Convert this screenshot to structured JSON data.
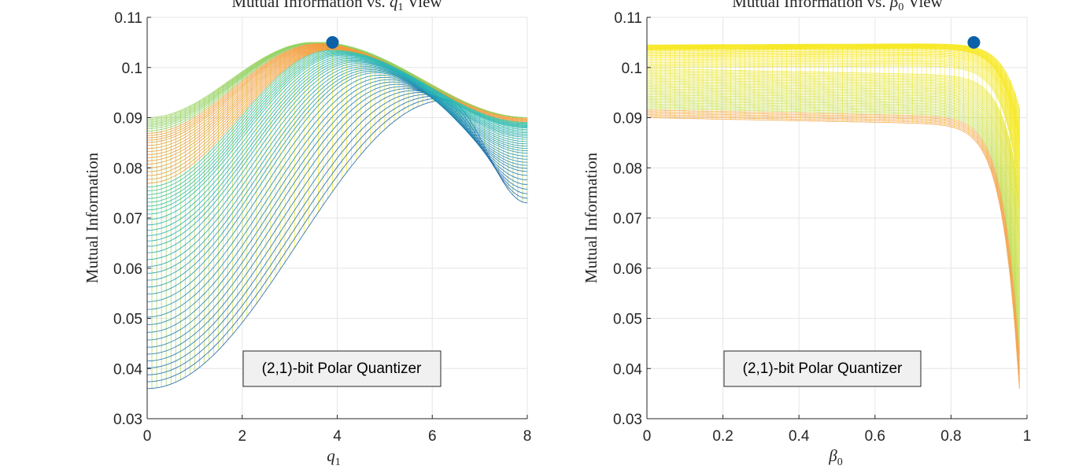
{
  "chart_data": [
    {
      "type": "line",
      "title_prefix": "Mutual Information vs. ",
      "title_symbol": "q",
      "title_symbol_sub": "1",
      "title_suffix": " View",
      "xlabel_symbol": "q",
      "xlabel_sub": "1",
      "ylabel": "Mutual Information",
      "xlim": [
        0,
        8
      ],
      "ylim": [
        0.03,
        0.11
      ],
      "xticks": [
        "0",
        "2",
        "4",
        "6",
        "8"
      ],
      "yticks": [
        "0.03",
        "0.04",
        "0.05",
        "0.06",
        "0.07",
        "0.08",
        "0.09",
        "0.1",
        "0.11"
      ],
      "grid": true,
      "annotation": "(2,1)-bit Polar Quantizer",
      "max_point": {
        "x": 3.9,
        "y": 0.105
      },
      "surface_rows": {
        "y_at_q0": [
          0.036,
          0.045,
          0.055,
          0.064,
          0.071,
          0.076,
          0.081,
          0.085,
          0.088,
          0.09
        ],
        "y_at_q8": [
          0.073,
          0.079,
          0.083,
          0.086,
          0.088,
          0.089,
          0.09,
          0.09,
          0.09,
          0.09
        ],
        "peak_q": [
          6.3,
          5.4,
          4.8,
          4.4,
          4.1,
          3.9,
          3.8,
          3.7,
          3.6,
          3.5
        ],
        "peak_y": [
          0.0935,
          0.096,
          0.099,
          0.101,
          0.1025,
          0.1035,
          0.104,
          0.1045,
          0.105,
          0.105
        ]
      }
    },
    {
      "type": "line",
      "title_prefix": "Mutual Information vs. ",
      "title_symbol": "β",
      "title_symbol_sub": "0",
      "title_suffix": " View",
      "xlabel_symbol": "β",
      "xlabel_sub": "0",
      "ylabel": "Mutual Information",
      "xlim": [
        0,
        1
      ],
      "ylim": [
        0.03,
        0.11
      ],
      "xticks": [
        "0",
        "0.2",
        "0.4",
        "0.6",
        "0.8",
        "1"
      ],
      "yticks": [
        "0.03",
        "0.04",
        "0.05",
        "0.06",
        "0.07",
        "0.08",
        "0.09",
        "0.1",
        "0.11"
      ],
      "grid": true,
      "annotation": "(2,1)-bit Polar Quantizer",
      "max_point": {
        "x": 0.86,
        "y": 0.105
      },
      "surface_rows": {
        "y_at_b0": [
          0.09,
          0.092,
          0.094,
          0.096,
          0.098,
          0.1,
          0.102,
          0.1035,
          0.104,
          0.1045
        ],
        "y_end": [
          0.036,
          0.045,
          0.055,
          0.064,
          0.071,
          0.076,
          0.081,
          0.085,
          0.088,
          0.092
        ]
      }
    }
  ],
  "colors": {
    "viridis_low": "#2166ac",
    "viridis_mid": "#21b6b6",
    "viridis_high": "#f7e81b",
    "orange": "#f29a3b",
    "max_marker": "#0b60a8",
    "grid": "#e6e6e6",
    "axis": "#262626"
  }
}
